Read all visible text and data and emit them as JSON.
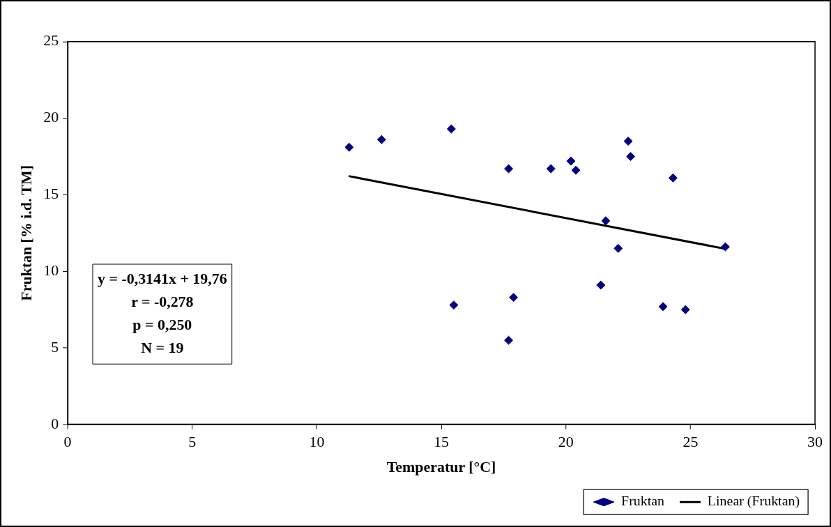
{
  "chart_data": {
    "type": "scatter",
    "xlabel": "Temperatur [°C]",
    "ylabel": "Fruktan [% i.d. TM]",
    "xlim": [
      0,
      30
    ],
    "ylim": [
      0,
      25
    ],
    "xticks": [
      0,
      5,
      10,
      15,
      20,
      25,
      30
    ],
    "yticks": [
      0,
      5,
      10,
      15,
      20,
      25
    ],
    "grid": false,
    "legend": "bottom right",
    "series": [
      {
        "name": "Fruktan",
        "color": "#000080",
        "marker": "diamond",
        "x": [
          11.3,
          12.6,
          15.4,
          17.7,
          19.4,
          20.2,
          20.4,
          15.5,
          17.9,
          22.5,
          22.6,
          24.3,
          21.6,
          22.1,
          26.4,
          21.4,
          23.9,
          24.8,
          17.7
        ],
        "values": [
          18.1,
          18.6,
          19.3,
          16.7,
          16.7,
          17.2,
          16.6,
          7.8,
          8.3,
          18.5,
          17.5,
          16.1,
          13.3,
          11.5,
          11.6,
          9.1,
          7.7,
          7.5,
          5.5
        ]
      },
      {
        "name": "Linear (Fruktan)",
        "type": "line",
        "color": "#000000",
        "marker": "none",
        "x": [
          11.28,
          26.37
        ],
        "values": [
          16.22,
          11.48
        ]
      }
    ],
    "annotations": [
      "y = -0,3141x + 19,76",
      "r = -0,278",
      "p = 0,250",
      "N = 19"
    ]
  }
}
